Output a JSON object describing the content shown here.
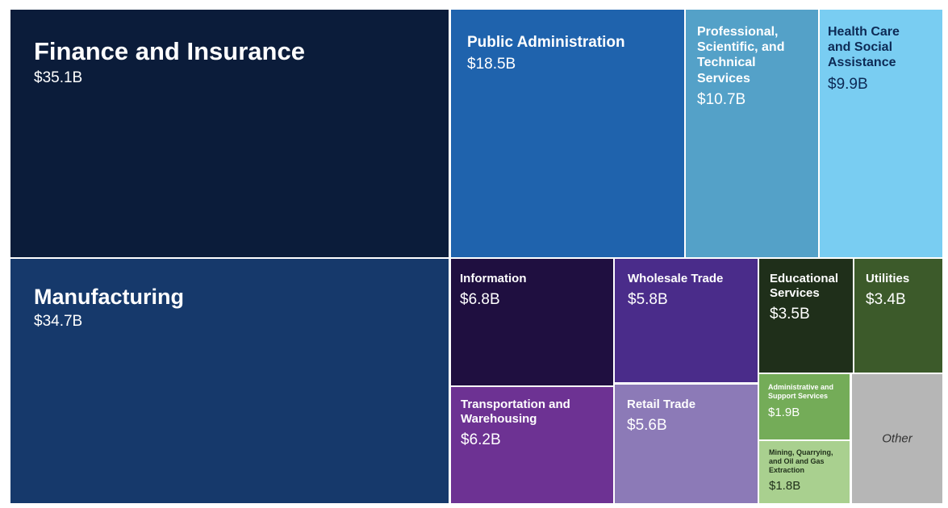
{
  "chart_data": {
    "type": "treemap",
    "title": "",
    "tiles": [
      {
        "name": "Finance and Insurance",
        "label": "$35.1B",
        "value": 35.1,
        "color": "#0b1c3a",
        "text_color": "#ffffff"
      },
      {
        "name": "Manufacturing",
        "label": "$34.7B",
        "value": 34.7,
        "color": "#16396b",
        "text_color": "#ffffff"
      },
      {
        "name": "Public Administration",
        "label": "$18.5B",
        "value": 18.5,
        "color": "#1f63ad",
        "text_color": "#ffffff"
      },
      {
        "name": "Professional, Scientific, and Technical Services",
        "label": "$10.7B",
        "value": 10.7,
        "color": "#54a1c8",
        "text_color": "#ffffff"
      },
      {
        "name": "Health Care and Social Assistance",
        "label": "$9.9B",
        "value": 9.9,
        "color": "#79cdf2",
        "text_color": "#0d2a55"
      },
      {
        "name": "Information",
        "label": "$6.8B",
        "value": 6.8,
        "color": "#1f0f40",
        "text_color": "#ffffff"
      },
      {
        "name": "Transportation and Warehousing",
        "label": "$6.2B",
        "value": 6.2,
        "color": "#6d3293",
        "text_color": "#ffffff"
      },
      {
        "name": "Wholesale Trade",
        "label": "$5.8B",
        "value": 5.8,
        "color": "#4a2c8a",
        "text_color": "#ffffff"
      },
      {
        "name": "Retail Trade",
        "label": "$5.6B",
        "value": 5.6,
        "color": "#8c7ab7",
        "text_color": "#ffffff"
      },
      {
        "name": "Educational Services",
        "label": "$3.5B",
        "value": 3.5,
        "color": "#1f2f1a",
        "text_color": "#ffffff"
      },
      {
        "name": "Utilities",
        "label": "$3.4B",
        "value": 3.4,
        "color": "#3c5a2a",
        "text_color": "#ffffff"
      },
      {
        "name": "Administrative and Support Services",
        "label": "$1.9B",
        "value": 1.9,
        "color": "#74ac58",
        "text_color": "#ffffff"
      },
      {
        "name": "Mining, Quarrying, and Oil and Gas Extraction",
        "label": "$1.8B",
        "value": 1.8,
        "color": "#a9d08f",
        "text_color": "#1f2f1a"
      },
      {
        "name": "Other",
        "label": "",
        "value": null,
        "color": "#b6b6b6",
        "text_color": "#333333"
      }
    ]
  }
}
